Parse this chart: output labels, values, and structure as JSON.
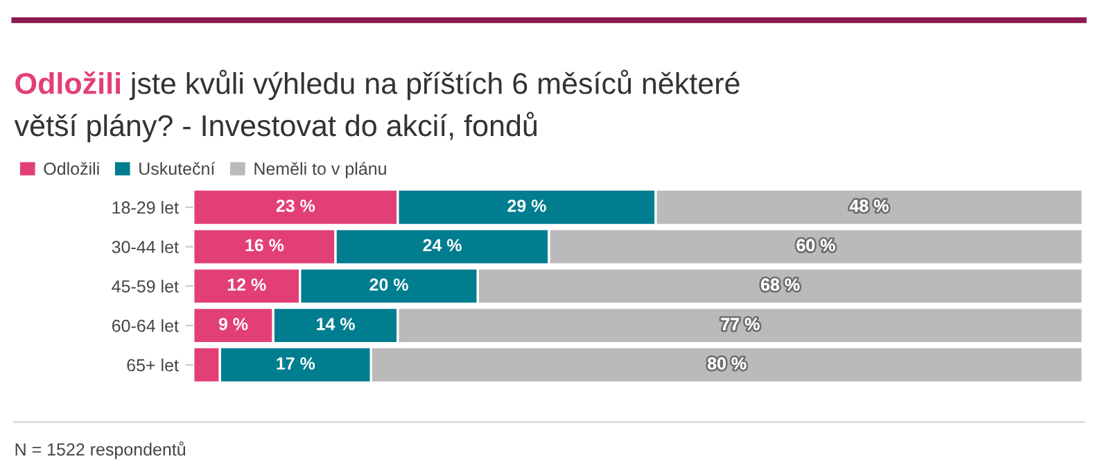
{
  "chart_data": {
    "type": "bar",
    "orientation": "horizontal",
    "stacked": true,
    "title": "Odložili jste kvůli výhledu na příštích 6 měsíců některé větší plány? - Investovat do akcií, fondů",
    "categories": [
      "18-29 let",
      "30-44 let",
      "45-59 let",
      "60-64 let",
      "65+ let"
    ],
    "series": [
      {
        "name": "Odložili",
        "color": "#e23f79",
        "values": [
          23,
          16,
          12,
          9,
          3
        ],
        "value_labels": [
          "23 %",
          "16 %",
          "12 %",
          "9 %",
          null
        ]
      },
      {
        "name": "Uskuteční",
        "color": "#007d8f",
        "values": [
          29,
          24,
          20,
          14,
          17
        ],
        "value_labels": [
          "29 %",
          "24 %",
          "20 %",
          "14 %",
          "17 %"
        ]
      },
      {
        "name": "Neměli to v plánu",
        "color": "#bbb9ba",
        "values": [
          48,
          60,
          68,
          77,
          80
        ],
        "value_labels": [
          "48 %",
          "60 %",
          "68 %",
          "77 %",
          "80 %"
        ]
      }
    ],
    "legend": "top left",
    "grid": false,
    "annotations": [
      "N = 1522 respondentů"
    ]
  }
}
